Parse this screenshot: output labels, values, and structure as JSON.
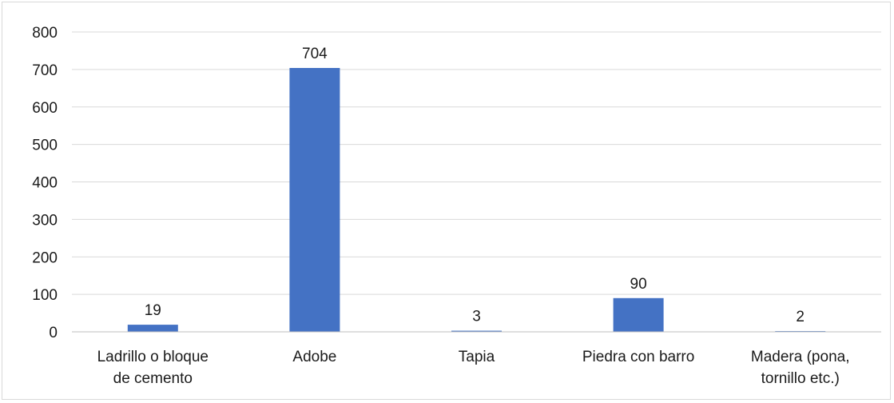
{
  "chart_data": {
    "type": "bar",
    "categories": [
      [
        "Ladrillo o bloque",
        "de cemento"
      ],
      [
        "Adobe"
      ],
      [
        "Tapia"
      ],
      [
        "Piedra con barro"
      ],
      [
        "Madera (pona,",
        "tornillo etc.)"
      ]
    ],
    "values": [
      19,
      704,
      3,
      90,
      2
    ],
    "data_labels": [
      "19",
      "704",
      "3",
      "90",
      "2"
    ],
    "y_ticks": [
      "0",
      "100",
      "200",
      "300",
      "400",
      "500",
      "600",
      "700",
      "800"
    ],
    "ylim": [
      0,
      800
    ],
    "grid": true,
    "bar_color": "#4472c4",
    "grid_color": "#d9d9d9",
    "axis_color": "#bfbfbf"
  }
}
